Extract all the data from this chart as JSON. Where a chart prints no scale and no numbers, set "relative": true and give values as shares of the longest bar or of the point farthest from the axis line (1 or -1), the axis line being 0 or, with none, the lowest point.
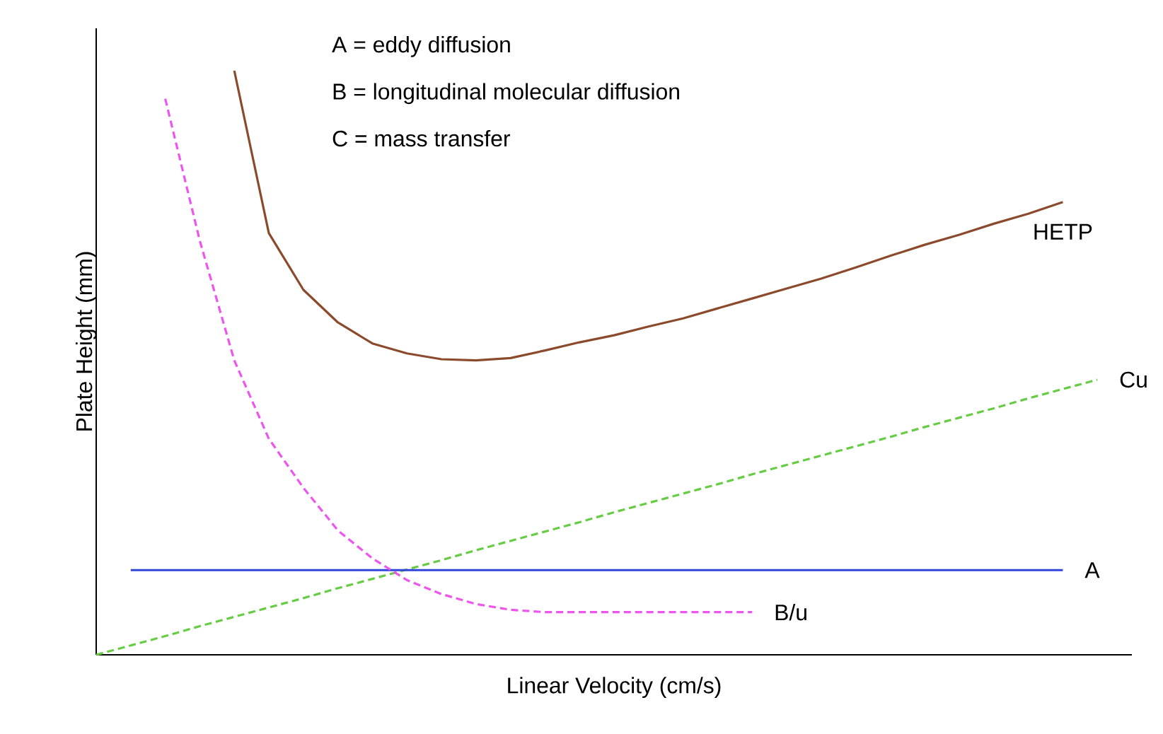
{
  "chart_data": {
    "type": "line",
    "relative": true,
    "xlabel": "Linear Velocity (cm/s)",
    "ylabel": "Plate Height (mm)",
    "annotations": [
      "A = eddy diffusion",
      "B = longitudinal molecular diffusion",
      "C = mass transfer"
    ],
    "categories": [
      null,
      null,
      null,
      null,
      null,
      null,
      null,
      null,
      null,
      null,
      null,
      null,
      null,
      null,
      null,
      null,
      null,
      null,
      null,
      null,
      null,
      null,
      null,
      null,
      null,
      null,
      null,
      null,
      null,
      null,
      null
    ],
    "legend": false,
    "series": [
      {
        "name": "HETP",
        "color": "#8b4a2b",
        "line_style": "solid",
        "values": [
          null,
          null,
          null,
          null,
          1.0,
          0.722,
          0.625,
          0.569,
          0.533,
          0.516,
          0.506,
          0.504,
          0.508,
          0.521,
          0.535,
          0.547,
          0.562,
          0.576,
          0.593,
          0.61,
          0.627,
          0.644,
          0.663,
          0.683,
          0.702,
          0.719,
          0.738,
          0.755,
          0.775,
          null,
          null
        ]
      },
      {
        "name": "Cu",
        "color": "#66cc44",
        "line_style": "dashed",
        "values": [
          0,
          0.016,
          0.032,
          0.049,
          0.065,
          0.081,
          0.097,
          0.114,
          0.13,
          0.146,
          0.162,
          0.179,
          0.195,
          0.211,
          0.227,
          0.244,
          0.26,
          0.276,
          0.292,
          0.309,
          0.325,
          0.341,
          0.357,
          0.373,
          0.39,
          0.406,
          0.422,
          0.439,
          0.455,
          0.471,
          null
        ]
      },
      {
        "name": "A",
        "color": "#3344dd",
        "line_style": "solid",
        "values": [
          null,
          0.145,
          0.145,
          0.145,
          0.145,
          0.145,
          0.145,
          0.145,
          0.145,
          0.145,
          0.145,
          0.145,
          0.145,
          0.145,
          0.145,
          0.145,
          0.145,
          0.145,
          0.145,
          0.145,
          0.145,
          0.145,
          0.145,
          0.145,
          0.145,
          0.145,
          0.145,
          0.145,
          0.145,
          null,
          null
        ]
      },
      {
        "name": "B/u",
        "color": "#ee55ee",
        "line_style": "dashed",
        "values": [
          null,
          null,
          0.952,
          0.709,
          0.504,
          0.37,
          0.286,
          0.213,
          0.165,
          0.128,
          0.104,
          0.087,
          0.077,
          0.073,
          0.073,
          0.073,
          0.073,
          0.073,
          0.073,
          0.073,
          null,
          null,
          null,
          null,
          null,
          null,
          null,
          null,
          null,
          null,
          null
        ]
      }
    ]
  }
}
